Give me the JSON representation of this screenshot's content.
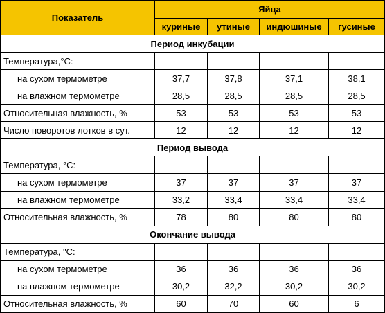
{
  "header": {
    "indicator": "Показатель",
    "eggs": "Яйца",
    "columns": [
      "куриные",
      "утиные",
      "индюшиные",
      "гусиные"
    ]
  },
  "sections": [
    {
      "title": "Период инкубации",
      "rows": [
        {
          "label": "Температура,°С:",
          "indent": false,
          "values": [
            "",
            "",
            "",
            ""
          ]
        },
        {
          "label": "на сухом термометре",
          "indent": true,
          "values": [
            "37,7",
            "37,8",
            "37,1",
            "38,1"
          ]
        },
        {
          "label": "на влажном термометре",
          "indent": true,
          "values": [
            "28,5",
            "28,5",
            "28,5",
            "28,5"
          ]
        },
        {
          "label": "Относительная влажность, %",
          "indent": false,
          "values": [
            "53",
            "53",
            "53",
            "53"
          ]
        },
        {
          "label": "Число поворотов лотков в сут.",
          "indent": false,
          "values": [
            "12",
            "12",
            "12",
            "12"
          ]
        }
      ]
    },
    {
      "title": "Период вывода",
      "rows": [
        {
          "label": "Температура, °С:",
          "indent": false,
          "values": [
            "",
            "",
            "",
            ""
          ]
        },
        {
          "label": "на сухом термометре",
          "indent": true,
          "values": [
            "37",
            "37",
            "37",
            "37"
          ]
        },
        {
          "label": "на влажном термометре",
          "indent": true,
          "values": [
            "33,2",
            "33,4",
            "33,4",
            "33,4"
          ]
        },
        {
          "label": "Относительная влажность, %",
          "indent": false,
          "values": [
            "78",
            "80",
            "80",
            "80"
          ]
        }
      ]
    },
    {
      "title": "Окончание вывода",
      "rows": [
        {
          "label": "Температура, \"С:",
          "indent": false,
          "values": [
            "",
            "",
            "",
            ""
          ]
        },
        {
          "label": "на сухом термометре",
          "indent": true,
          "values": [
            "36",
            "36",
            "36",
            "36"
          ]
        },
        {
          "label": "на влажном термометре",
          "indent": true,
          "values": [
            "30,2",
            "32,2",
            "30,2",
            "30,2"
          ]
        },
        {
          "label": "Относительная влажность, %",
          "indent": false,
          "values": [
            "60",
            "70",
            "60",
            "6"
          ]
        }
      ]
    }
  ],
  "colors": {
    "header_bg": "#f5c400",
    "border": "#000000",
    "background": "#ffffff"
  }
}
